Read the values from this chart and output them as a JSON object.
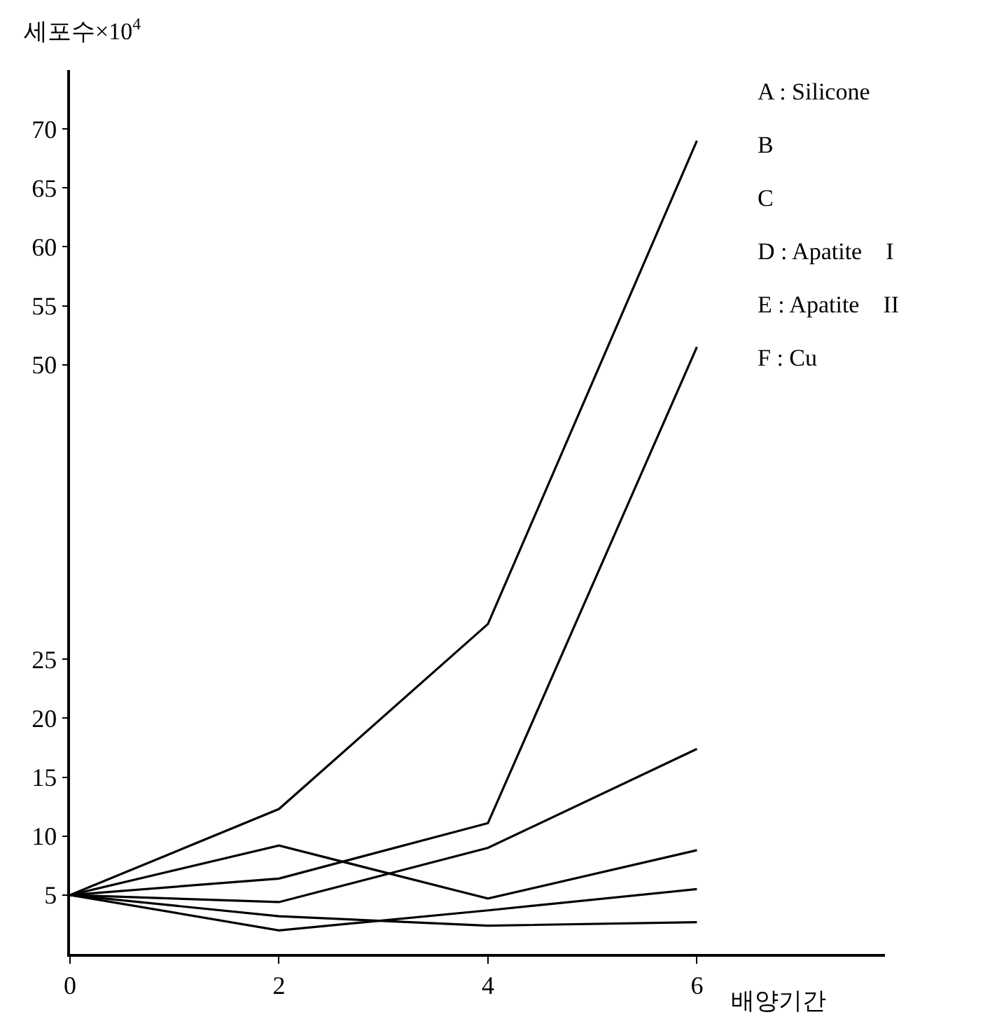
{
  "chart_data": {
    "type": "line",
    "ylabel": "세포수×10$^{4}$",
    "xlabel": "배양기간",
    "x": [
      0,
      2,
      4,
      6
    ],
    "series": [
      {
        "color": "#000000",
        "values": [
          5,
          12.3,
          28,
          69
        ]
      },
      {
        "color": "#000000",
        "values": [
          5,
          6.4,
          11.1,
          51.5
        ]
      },
      {
        "color": "#000000",
        "values": [
          5,
          9.2,
          4.7,
          8.8
        ]
      },
      {
        "color": "#000000",
        "values": [
          5,
          4.4,
          9,
          17.4
        ]
      },
      {
        "color": "#000000",
        "values": [
          5,
          3.2,
          2.4,
          2.7
        ]
      },
      {
        "color": "#000000",
        "values": [
          5,
          2,
          3.7,
          5.5
        ]
      }
    ],
    "xlim": [
      0,
      7.8
    ],
    "xticks": [
      0,
      2,
      4,
      6
    ],
    "ylim": [
      0,
      75
    ],
    "yticks": [
      5,
      10,
      15,
      20,
      25,
      50,
      55,
      60,
      65,
      70
    ],
    "grid": false,
    "annotations": [
      "A : Silicone",
      "B",
      "C",
      "D : Apatite　I",
      "E : Apatite　II",
      "F : Cu"
    ]
  }
}
